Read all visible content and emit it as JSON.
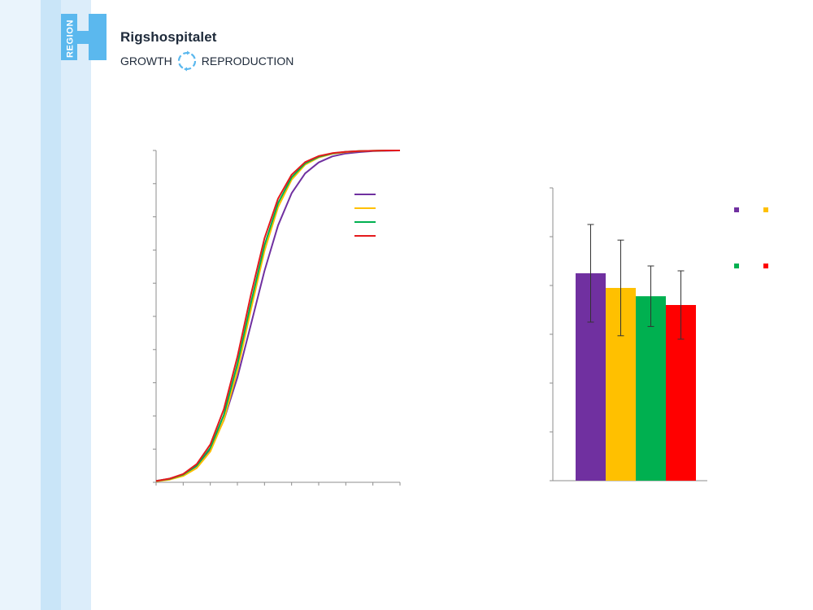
{
  "brand": {
    "logo_text": "REGION",
    "name": "Rigshospitalet",
    "tagline_left": "GROWTH",
    "tagline_right": "REPRODUCTION",
    "color_dark": "#1e2a3a",
    "color_light_blue": "#5bb8ee",
    "icon": "cycle-arrows-icon"
  },
  "background": {
    "stripe_colors": [
      "#eaf4fc",
      "#c9e5f8",
      "#dcedfa"
    ]
  },
  "chart_data": [
    {
      "type": "line",
      "title": "",
      "xlabel": "",
      "ylabel": "",
      "xlim": [
        0,
        9
      ],
      "ylim": [
        0,
        1
      ],
      "x_ticks": 9,
      "y_ticks": 10,
      "grid": false,
      "legend": "top-right",
      "series": [
        {
          "color": "#7030a0",
          "x": [
            0,
            0.5,
            1,
            1.5,
            2,
            2.5,
            3,
            3.5,
            4,
            4.5,
            5,
            5.5,
            6,
            6.5,
            7,
            7.5,
            8,
            8.5,
            9
          ],
          "values": [
            0.004,
            0.011,
            0.023,
            0.049,
            0.099,
            0.187,
            0.316,
            0.476,
            0.637,
            0.774,
            0.871,
            0.931,
            0.964,
            0.982,
            0.991,
            0.995,
            0.998,
            0.999,
            1.0
          ]
        },
        {
          "color": "#ffc000",
          "x": [
            0,
            0.5,
            1,
            1.5,
            2,
            2.5,
            3,
            3.5,
            4,
            4.5,
            5,
            5.5,
            6,
            6.5,
            7,
            7.5,
            8,
            8.5,
            9
          ],
          "values": [
            0.003,
            0.008,
            0.019,
            0.043,
            0.093,
            0.188,
            0.336,
            0.521,
            0.697,
            0.829,
            0.912,
            0.957,
            0.979,
            0.99,
            0.995,
            0.998,
            0.999,
            1.0,
            1.0
          ]
        },
        {
          "color": "#00b050",
          "x": [
            0,
            0.5,
            1,
            1.5,
            2,
            2.5,
            3,
            3.5,
            4,
            4.5,
            5,
            5.5,
            6,
            6.5,
            7,
            7.5,
            8,
            8.5,
            9
          ],
          "values": [
            0.004,
            0.01,
            0.023,
            0.05,
            0.104,
            0.203,
            0.356,
            0.541,
            0.714,
            0.841,
            0.919,
            0.961,
            0.981,
            0.991,
            0.996,
            0.998,
            0.999,
            1.0,
            1.0
          ]
        },
        {
          "color": "#e41a1c",
          "x": [
            0,
            0.5,
            1,
            1.5,
            2,
            2.5,
            3,
            3.5,
            4,
            4.5,
            5,
            5.5,
            6,
            6.5,
            7,
            7.5,
            8,
            8.5,
            9
          ],
          "values": [
            0.004,
            0.011,
            0.025,
            0.055,
            0.114,
            0.22,
            0.378,
            0.566,
            0.735,
            0.855,
            0.927,
            0.965,
            0.983,
            0.992,
            0.996,
            0.998,
            0.999,
            1.0,
            1.0
          ]
        }
      ]
    },
    {
      "type": "bar",
      "title": "",
      "xlabel": "",
      "ylabel": "",
      "ylim": [
        0,
        6
      ],
      "y_ticks": 6,
      "grid": false,
      "legend": "top-right",
      "series": [
        {
          "color": "#7030a0",
          "value": 4.25,
          "error": 1.0
        },
        {
          "color": "#ffc000",
          "value": 3.95,
          "error": 0.98
        },
        {
          "color": "#00b050",
          "value": 3.78,
          "error": 0.62
        },
        {
          "color": "#ff0000",
          "value": 3.6,
          "error": 0.7
        }
      ]
    }
  ]
}
